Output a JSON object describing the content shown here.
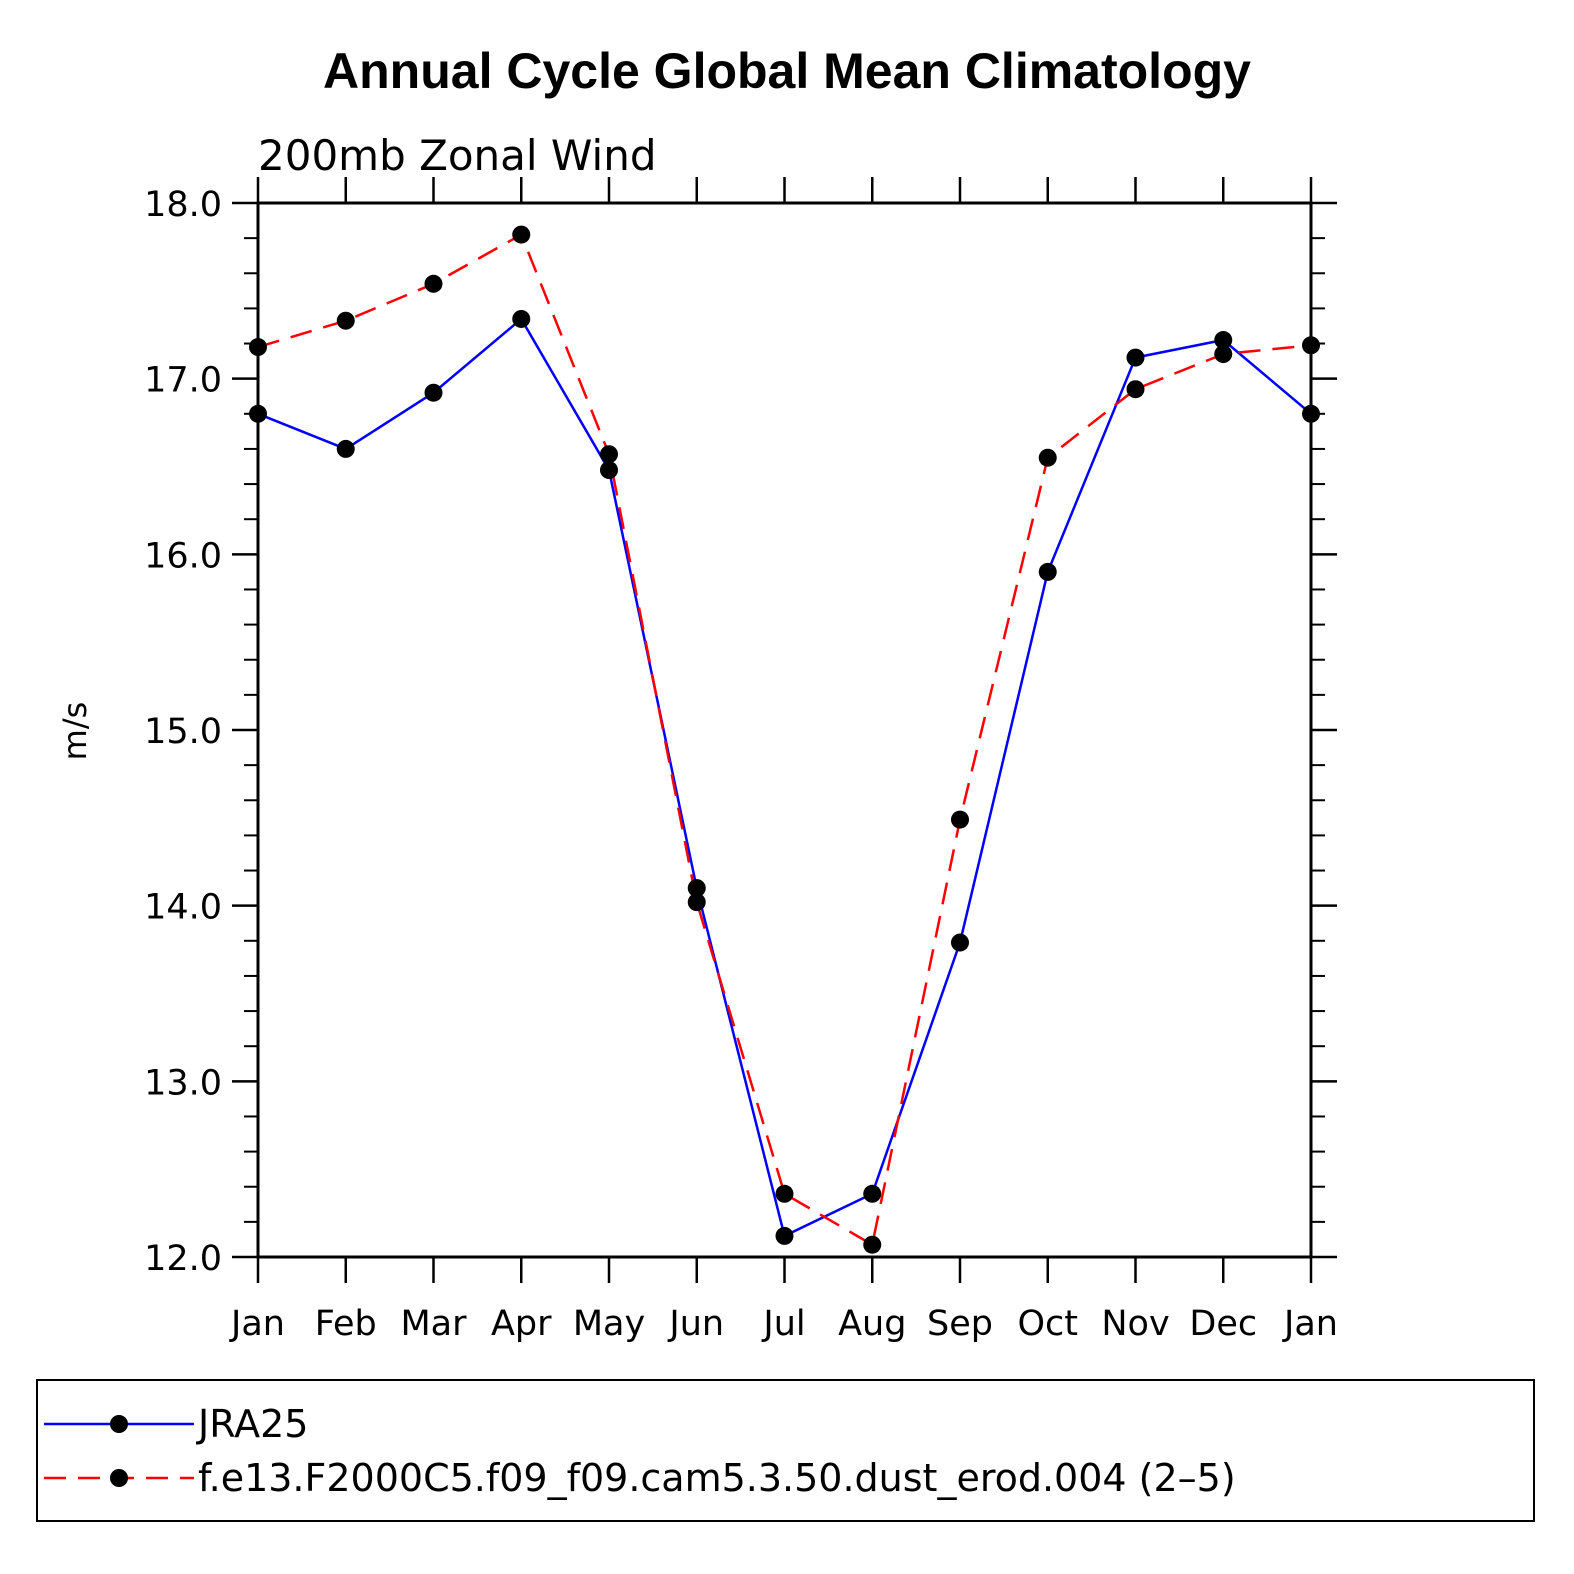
{
  "chart_data": {
    "type": "line",
    "title": "Annual Cycle Global Mean Climatology",
    "subtitle": "200mb Zonal Wind",
    "ylabel": "m/s",
    "xlabel": "",
    "ylim": [
      12.0,
      18.0
    ],
    "ytick_values": [
      12.0,
      13.0,
      14.0,
      15.0,
      16.0,
      17.0,
      18.0
    ],
    "ytick_labels": [
      "12.0",
      "13.0",
      "14.0",
      "15.0",
      "16.0",
      "17.0",
      "18.0"
    ],
    "categories": [
      "Jan",
      "Feb",
      "Mar",
      "Apr",
      "May",
      "Jun",
      "Jul",
      "Aug",
      "Sep",
      "Oct",
      "Nov",
      "Dec",
      "Jan"
    ],
    "grid": false,
    "legend_position": "bottom",
    "series": [
      {
        "name": "JRA25",
        "color": "#0000ff",
        "dash": "solid",
        "values": [
          16.8,
          16.6,
          16.92,
          17.34,
          16.48,
          14.1,
          12.12,
          12.36,
          13.79,
          15.9,
          17.12,
          17.22,
          16.8
        ]
      },
      {
        "name": "f.e13.F2000C5.f09_f09.cam5.3.50.dust_erod.004 (2–5)",
        "color": "#ff0000",
        "dash": "dashed",
        "values": [
          17.18,
          17.33,
          17.54,
          17.82,
          16.57,
          14.02,
          12.36,
          12.07,
          14.49,
          16.55,
          16.94,
          17.14,
          17.19
        ]
      }
    ]
  }
}
